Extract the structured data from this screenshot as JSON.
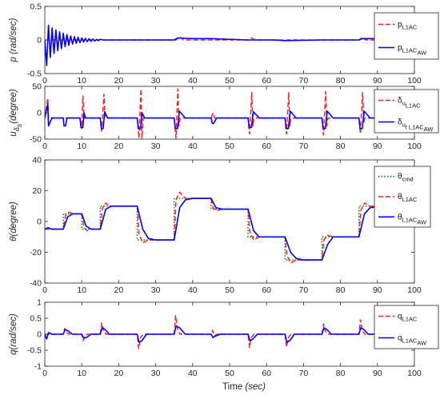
{
  "xlabel": {
    "main": "Time ",
    "unit": "(sec)"
  },
  "chart_data": [
    {
      "id": "p",
      "type": "line",
      "ylabel": {
        "main": "p (rad/sec)"
      },
      "xlim": [
        0,
        100
      ],
      "ylim": [
        -0.5,
        0.5
      ],
      "xticks": [
        0,
        10,
        20,
        30,
        40,
        50,
        60,
        70,
        80,
        90,
        100
      ],
      "yticks": [
        -0.5,
        0,
        0.5
      ],
      "ytick_labels": [
        "-0.5",
        "0",
        "0.5"
      ],
      "legend_position": "top-right",
      "series": [
        {
          "name": {
            "base": "p",
            "sub": "L1AC",
            "subsub": ""
          },
          "color": "#ff2020",
          "dash": "dashed",
          "x": [
            0,
            35.5,
            36.5,
            37.5,
            55,
            56,
            57,
            85,
            86,
            86.5,
            87,
            92
          ],
          "y": [
            0,
            0,
            0.05,
            0,
            0,
            0.03,
            0,
            0,
            0.04,
            0.01,
            0,
            0
          ]
        },
        {
          "name": {
            "base": "p",
            "sub": "L1AC",
            "subsub": "AW"
          },
          "color": "#0000ff",
          "dash": "solid",
          "x": [
            0,
            0.5,
            1,
            1.5,
            2,
            2.5,
            3,
            3.5,
            4,
            4.5,
            5,
            5.5,
            6,
            6.5,
            7,
            7.5,
            8,
            8.5,
            9,
            9.5,
            10,
            10.5,
            11,
            11.5,
            12,
            12.5,
            13,
            13.5,
            14,
            14.5,
            15,
            16,
            17,
            20,
            25,
            26,
            35,
            36,
            40,
            45,
            55,
            56,
            62,
            65,
            75,
            85,
            86,
            92
          ],
          "y": [
            0,
            -0.38,
            0.22,
            -0.26,
            0.18,
            -0.2,
            0.15,
            -0.16,
            0.12,
            -0.13,
            0.1,
            -0.1,
            0.08,
            -0.08,
            0.06,
            -0.06,
            0.05,
            -0.05,
            0.04,
            -0.04,
            0.03,
            -0.03,
            0.025,
            -0.025,
            0.02,
            -0.02,
            0.015,
            -0.015,
            0.01,
            -0.01,
            0.01,
            0,
            0,
            0,
            0,
            0,
            0,
            0.03,
            0.02,
            0.02,
            0,
            0,
            0,
            -0.01,
            0,
            0,
            0.02,
            0.02
          ]
        }
      ]
    },
    {
      "id": "u",
      "type": "line",
      "ylabel": {
        "main": "u",
        "sub": "δ",
        "subsub": "s",
        "unit": "(degree)"
      },
      "xlim": [
        0,
        100
      ],
      "ylim": [
        -50,
        50
      ],
      "xticks": [
        0,
        10,
        20,
        30,
        40,
        50,
        60,
        70,
        80,
        90,
        100
      ],
      "yticks": [
        -50,
        0,
        50
      ],
      "ytick_labels": [
        "-50",
        "0",
        "50"
      ],
      "legend_position": "top-right",
      "series": [
        {
          "name": {
            "base": "δ",
            "sub": "u",
            "subsub": "L1AC"
          },
          "color": "#ff2020",
          "dash": "dashed",
          "x": [
            0,
            0.8,
            1,
            1.5,
            2,
            5,
            5.5,
            6,
            7,
            9.5,
            10,
            10.3,
            10.6,
            11,
            12,
            15,
            15.4,
            16,
            16.3,
            16.6,
            17,
            18,
            25,
            25.5,
            26,
            26.3,
            26.6,
            27,
            35,
            35.5,
            36,
            36.3,
            36.6,
            37,
            45,
            45.5,
            46,
            47,
            55,
            55.4,
            56,
            56.3,
            56.6,
            57,
            65,
            65.4,
            66,
            66.3,
            66.6,
            67,
            75,
            75.4,
            76,
            76.3,
            76.6,
            77,
            85,
            85.4,
            86,
            86.3,
            86.6,
            87,
            92
          ],
          "y": [
            -10,
            28,
            -10,
            -8,
            -10,
            -10,
            -10,
            -10,
            -10,
            -10,
            -30,
            32,
            -10,
            -10,
            -10,
            -10,
            -35,
            35,
            -10,
            -10,
            -10,
            -10,
            -10,
            -48,
            45,
            -48,
            -10,
            -10,
            -10,
            -48,
            45,
            -25,
            -10,
            -10,
            -10,
            0,
            -10,
            -10,
            -10,
            -40,
            38,
            -25,
            -10,
            -10,
            -10,
            -40,
            38,
            -25,
            -10,
            -10,
            -10,
            -42,
            40,
            -25,
            -10,
            -10,
            -10,
            -40,
            38,
            -20,
            -10,
            -10,
            -10
          ]
        },
        {
          "name": {
            "base": "δ",
            "sub": "u",
            "subsub": "t L1AC",
            "subsubsub": "AW"
          },
          "color": "#0000ff",
          "dash": "solid",
          "x": [
            0,
            0.8,
            1,
            1.8,
            2,
            5,
            5.2,
            5.6,
            6,
            9.5,
            9.8,
            10.3,
            10.6,
            11,
            15,
            15.3,
            15.8,
            16.2,
            17,
            25,
            25.3,
            25.9,
            26.3,
            27,
            35,
            35.3,
            35.9,
            36.4,
            38,
            45,
            45.3,
            45.7,
            46.5,
            55,
            55.3,
            55.9,
            56.4,
            58,
            65,
            65.3,
            65.9,
            66.4,
            68,
            75,
            75.3,
            75.9,
            76.4,
            78,
            85,
            85.3,
            85.9,
            86.4,
            88,
            92
          ],
          "y": [
            -10,
            17,
            -25,
            -12,
            -10,
            -10,
            -25,
            -25,
            -10,
            -10,
            -28,
            -28,
            0,
            -10,
            -10,
            -30,
            -30,
            2,
            -10,
            -10,
            -30,
            -30,
            0,
            -10,
            -10,
            -30,
            -30,
            3,
            -10,
            -10,
            -20,
            -20,
            -10,
            -10,
            -28,
            -28,
            2,
            -10,
            -10,
            -30,
            -30,
            3,
            -10,
            -10,
            -30,
            -30,
            3,
            -10,
            -10,
            -30,
            -30,
            3,
            -10,
            -10
          ]
        }
      ]
    },
    {
      "id": "theta",
      "type": "line",
      "ylabel": {
        "main": "θ(degree)"
      },
      "xlim": [
        0,
        100
      ],
      "ylim": [
        -40,
        40
      ],
      "xticks": [
        0,
        10,
        20,
        30,
        40,
        50,
        60,
        70,
        80,
        90,
        100
      ],
      "yticks": [
        -40,
        -20,
        0,
        20,
        40
      ],
      "ytick_labels": [
        "-40",
        "-20",
        "0",
        "20",
        "40"
      ],
      "legend_position": "top-right",
      "series": [
        {
          "name": {
            "base": "θ",
            "sub": "cmd",
            "subsub": ""
          },
          "color": "#008000",
          "dash": "dotted",
          "x": [
            0,
            5,
            5,
            10,
            10,
            15,
            15,
            25,
            25,
            35,
            35,
            45,
            45,
            55,
            55,
            65,
            65,
            75,
            75,
            85,
            85,
            92
          ],
          "y": [
            -5,
            -5,
            5,
            5,
            -5,
            -5,
            10,
            10,
            -12,
            -12,
            15,
            15,
            8,
            8,
            -10,
            -10,
            -25,
            -25,
            -10,
            -10,
            10,
            10
          ]
        },
        {
          "name": {
            "base": "θ",
            "sub": "L1AC",
            "subsub": ""
          },
          "color": "#ff2020",
          "dash": "dashed",
          "x": [
            0,
            2,
            5,
            5.6,
            6.5,
            7.5,
            10,
            10.6,
            11.5,
            12.5,
            15,
            15.6,
            16.5,
            17.5,
            25,
            25.5,
            26.5,
            28,
            35,
            35.5,
            36.5,
            38,
            45,
            45.5,
            46.5,
            48,
            55,
            55.5,
            56.5,
            58,
            65,
            65.5,
            66.5,
            68,
            75,
            75.5,
            76.5,
            78,
            85,
            85.5,
            86.5,
            88,
            92
          ],
          "y": [
            -5,
            -5,
            -5,
            4,
            6,
            5,
            5,
            -4,
            -6,
            -5,
            -5,
            9,
            12,
            10,
            10,
            -8,
            -14,
            -12,
            -12,
            14,
            19,
            15,
            15,
            9,
            7,
            8,
            8,
            -7,
            -12,
            -10,
            -10,
            -22,
            -27,
            -25,
            -25,
            -12,
            -9,
            -10,
            -10,
            7,
            12,
            10,
            10
          ]
        },
        {
          "name": {
            "base": "θ",
            "sub": "L1AC",
            "subsub": "AW"
          },
          "color": "#0000ff",
          "dash": "solid",
          "x": [
            0,
            0.8,
            2,
            5,
            6.2,
            7.5,
            10,
            11.2,
            12.5,
            15,
            16.5,
            18,
            25,
            26.5,
            28,
            30,
            35,
            36.5,
            38,
            40,
            45,
            46.3,
            48,
            55,
            56.5,
            58,
            65,
            66.5,
            68,
            70,
            75,
            76.5,
            78,
            85,
            86.5,
            88,
            92
          ],
          "y": [
            -5,
            -4,
            -5,
            -5,
            3,
            5,
            5,
            -3,
            -5,
            -5,
            8,
            10,
            10,
            -5,
            -11,
            -12,
            -12,
            9,
            14,
            15,
            15,
            9,
            8,
            8,
            -6,
            -10,
            -10,
            -20,
            -24,
            -25,
            -25,
            -15,
            -10,
            -10,
            5,
            9,
            10
          ]
        }
      ]
    },
    {
      "id": "q",
      "type": "line",
      "ylabel": {
        "main": "q(rad/sec)"
      },
      "xlim": [
        0,
        100
      ],
      "ylim": [
        -1,
        1
      ],
      "xticks": [
        0,
        10,
        20,
        30,
        40,
        50,
        60,
        70,
        80,
        90,
        100
      ],
      "yticks": [
        -1,
        -0.5,
        0,
        0.5,
        1
      ],
      "ytick_labels": [
        "-1",
        "-0.5",
        "0",
        "0.5",
        "1"
      ],
      "legend_position": "top-right",
      "series": [
        {
          "name": {
            "base": "q",
            "sub": "L1AC",
            "subsub": ""
          },
          "color": "#ff2020",
          "dash": "dashed",
          "x": [
            0,
            5,
            5.4,
            5.9,
            6.5,
            10,
            10.4,
            10.9,
            11.5,
            15,
            15.4,
            15.9,
            16.6,
            25,
            25.4,
            25.9,
            26.6,
            35,
            35.4,
            35.9,
            36.6,
            45,
            45.4,
            45.9,
            46.6,
            55,
            55.4,
            55.9,
            56.6,
            65,
            65.4,
            65.9,
            66.6,
            75,
            75.4,
            75.9,
            76.6,
            85,
            85.4,
            85.9,
            86.6,
            92
          ],
          "y": [
            0,
            0,
            0.18,
            0.05,
            0,
            0,
            -0.2,
            -0.05,
            0,
            0,
            0.35,
            0.1,
            0,
            0,
            -0.45,
            -0.1,
            0,
            0,
            0.58,
            0.15,
            0,
            0,
            0.12,
            -0.05,
            0,
            0,
            -0.42,
            -0.1,
            0,
            0,
            -0.4,
            -0.1,
            0,
            0,
            0.32,
            0.1,
            0,
            0,
            0.45,
            0.1,
            0,
            0
          ]
        },
        {
          "name": {
            "base": "q",
            "sub": "L1AC",
            "subsub": "AW"
          },
          "color": "#0000ff",
          "dash": "solid",
          "x": [
            0,
            0.5,
            1,
            2,
            5,
            5.5,
            6.3,
            7.5,
            10,
            10.5,
            11.3,
            12.5,
            15,
            15.5,
            16.3,
            17.5,
            25,
            25.5,
            26.3,
            27.5,
            35,
            35.5,
            36.5,
            38,
            45,
            45.5,
            46.3,
            47.5,
            55,
            55.5,
            56.3,
            57.5,
            65,
            65.5,
            66.3,
            67.5,
            75,
            75.5,
            76.3,
            77.5,
            85,
            85.5,
            86.3,
            87.5,
            92
          ],
          "y": [
            0,
            -0.15,
            0.05,
            0,
            0,
            0.15,
            0.1,
            0,
            0,
            -0.12,
            -0.1,
            0,
            0,
            0.2,
            0.15,
            0,
            0,
            -0.25,
            -0.2,
            0,
            0,
            0.25,
            0.2,
            0,
            0,
            -0.1,
            -0.05,
            0,
            0,
            -0.2,
            -0.15,
            0,
            0,
            -0.25,
            -0.2,
            0,
            0,
            0.2,
            0.15,
            0,
            0,
            0.2,
            0.15,
            0,
            0
          ]
        }
      ]
    }
  ]
}
